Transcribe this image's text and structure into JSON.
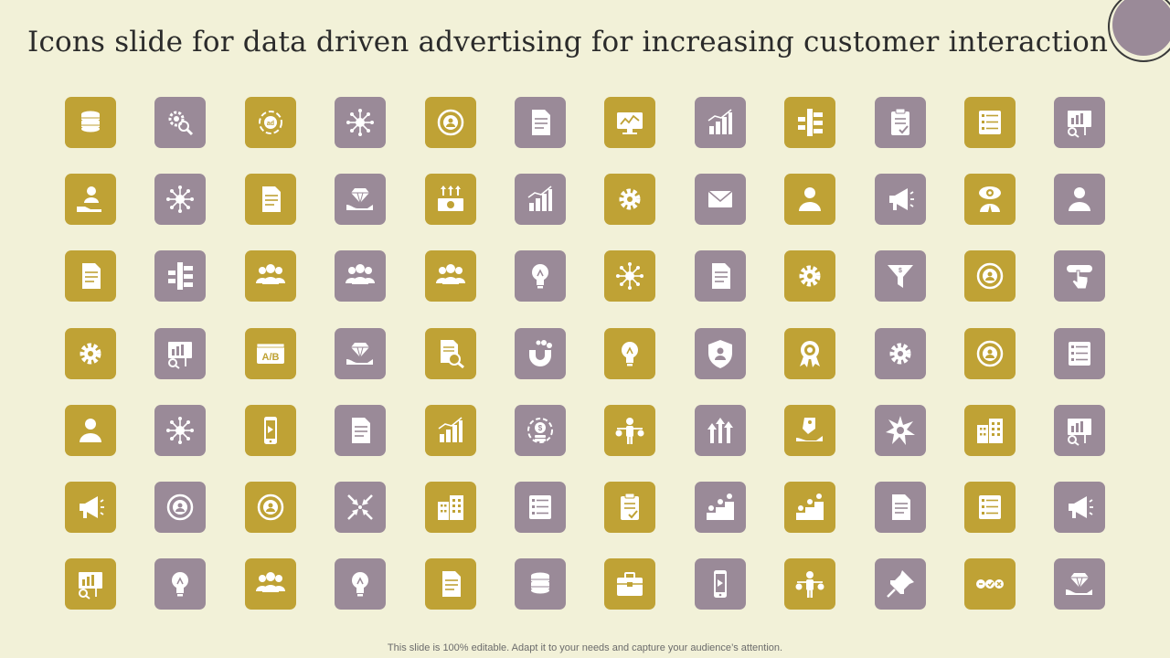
{
  "slide": {
    "title": "Icons slide for data driven advertising for increasing customer interaction",
    "footer": "This slide is 100% editable. Adapt it to your needs and capture your audience’s attention."
  },
  "colors": {
    "background": "#f2f1d8",
    "tile_gold": "#bfa235",
    "tile_mauve": "#9a8a98",
    "icon": "#ffffff",
    "accent_disc": "#9a8a98"
  },
  "icons": [
    [
      {
        "name": "database-stack-icon",
        "color": "gold",
        "glyph": "db"
      },
      {
        "name": "gear-search-icon",
        "color": "mauve",
        "glyph": "gearsearch"
      },
      {
        "name": "ad-cycle-icon",
        "color": "gold",
        "glyph": "cycle",
        "text": "ad"
      },
      {
        "name": "network-hub-icon",
        "color": "mauve",
        "glyph": "hub"
      },
      {
        "name": "target-user-icon",
        "color": "gold",
        "glyph": "target"
      },
      {
        "name": "report-document-icon",
        "color": "mauve",
        "glyph": "doc"
      },
      {
        "name": "monitor-analytics-icon",
        "color": "gold",
        "glyph": "monitor"
      },
      {
        "name": "pen-chart-icon",
        "color": "mauve",
        "glyph": "chart"
      },
      {
        "name": "flowchart-icon",
        "color": "gold",
        "glyph": "flow"
      },
      {
        "name": "clipboard-check-icon",
        "color": "mauve",
        "glyph": "clipboard"
      },
      {
        "name": "checklist-icon",
        "color": "gold",
        "glyph": "list"
      },
      {
        "name": "presentation-search-icon",
        "color": "mauve",
        "glyph": "board"
      }
    ],
    [
      {
        "name": "hand-user-icon",
        "color": "gold",
        "glyph": "handuser"
      },
      {
        "name": "document-network-icon",
        "color": "mauve",
        "glyph": "hub"
      },
      {
        "name": "documents-icon",
        "color": "gold",
        "glyph": "doc"
      },
      {
        "name": "hand-diamond-icon",
        "color": "mauve",
        "glyph": "diamond"
      },
      {
        "name": "money-growth-icon",
        "color": "gold",
        "glyph": "money"
      },
      {
        "name": "dollar-growth-chart-icon",
        "color": "mauve",
        "glyph": "chart"
      },
      {
        "name": "gear-tools-icon",
        "color": "gold",
        "glyph": "gear"
      },
      {
        "name": "envelope-icon",
        "color": "mauve",
        "glyph": "envelope"
      },
      {
        "name": "user-profile-icon",
        "color": "gold",
        "glyph": "user"
      },
      {
        "name": "megaphone-user-icon",
        "color": "mauve",
        "glyph": "megaphone"
      },
      {
        "name": "eye-businessman-icon",
        "color": "gold",
        "glyph": "eye"
      },
      {
        "name": "user-search-icon",
        "color": "mauve",
        "glyph": "user"
      }
    ],
    [
      {
        "name": "spreadsheet-report-icon",
        "color": "gold",
        "glyph": "doc"
      },
      {
        "name": "star-hierarchy-icon",
        "color": "mauve",
        "glyph": "flow"
      },
      {
        "name": "team-discussion-icon",
        "color": "gold",
        "glyph": "team"
      },
      {
        "name": "team-add-icon",
        "color": "mauve",
        "glyph": "team"
      },
      {
        "name": "group-meeting-icon",
        "color": "gold",
        "glyph": "team"
      },
      {
        "name": "idea-bulb-icon",
        "color": "mauve",
        "glyph": "bulb"
      },
      {
        "name": "connected-users-icon",
        "color": "gold",
        "glyph": "hub"
      },
      {
        "name": "notepad-edit-icon",
        "color": "mauve",
        "glyph": "doc"
      },
      {
        "name": "gear-settings-icon",
        "color": "gold",
        "glyph": "gear"
      },
      {
        "name": "dollar-funnel-icon",
        "color": "mauve",
        "glyph": "funnel"
      },
      {
        "name": "circular-network-icon",
        "color": "gold",
        "glyph": "target"
      },
      {
        "name": "click-hand-icon",
        "color": "mauve",
        "glyph": "click"
      }
    ],
    [
      {
        "name": "gears-cycle-icon",
        "color": "gold",
        "glyph": "gear"
      },
      {
        "name": "presentation-analysis-icon",
        "color": "mauve",
        "glyph": "board"
      },
      {
        "name": "ab-testing-icon",
        "color": "gold",
        "glyph": "ab",
        "text": "A/B"
      },
      {
        "name": "hands-diamond-icon",
        "color": "mauve",
        "glyph": "diamond"
      },
      {
        "name": "document-search-icon",
        "color": "gold",
        "glyph": "docsearch"
      },
      {
        "name": "magnet-icon",
        "color": "mauve",
        "glyph": "magnet"
      },
      {
        "name": "head-idea-icon",
        "color": "gold",
        "glyph": "bulb"
      },
      {
        "name": "shield-users-icon",
        "color": "mauve",
        "glyph": "shield"
      },
      {
        "name": "award-badge-icon",
        "color": "gold",
        "glyph": "award"
      },
      {
        "name": "hand-gears-icon",
        "color": "mauve",
        "glyph": "gear"
      },
      {
        "name": "customer-faces-icon",
        "color": "gold",
        "glyph": "target"
      },
      {
        "name": "settings-list-icon",
        "color": "mauve",
        "glyph": "list"
      }
    ],
    [
      {
        "name": "user-speech-icon",
        "color": "gold",
        "glyph": "user"
      },
      {
        "name": "briefcase-network-icon",
        "color": "mauve",
        "glyph": "hub"
      },
      {
        "name": "mobile-marketing-icon",
        "color": "gold",
        "glyph": "phone"
      },
      {
        "name": "text-document-icon",
        "color": "mauve",
        "glyph": "doc"
      },
      {
        "name": "growth-chart-search-icon",
        "color": "gold",
        "glyph": "chart"
      },
      {
        "name": "dollar-coins-cycle-icon",
        "color": "mauve",
        "glyph": "coin"
      },
      {
        "name": "balance-scale-person-icon",
        "color": "gold",
        "glyph": "scale"
      },
      {
        "name": "upward-arrows-icon",
        "color": "mauve",
        "glyph": "arrows"
      },
      {
        "name": "hand-tag-icon",
        "color": "gold",
        "glyph": "tag"
      },
      {
        "name": "broken-puzzle-icon",
        "color": "mauve",
        "glyph": "burst"
      },
      {
        "name": "office-buildings-icon",
        "color": "gold",
        "glyph": "building"
      },
      {
        "name": "presenter-board-icon",
        "color": "mauve",
        "glyph": "board"
      }
    ],
    [
      {
        "name": "megaphone-icon",
        "color": "gold",
        "glyph": "megaphone"
      },
      {
        "name": "target-arrows-icon",
        "color": "mauve",
        "glyph": "target"
      },
      {
        "name": "target-document-icon",
        "color": "gold",
        "glyph": "target"
      },
      {
        "name": "converging-arrows-icon",
        "color": "mauve",
        "glyph": "converge"
      },
      {
        "name": "city-car-icon",
        "color": "gold",
        "glyph": "building"
      },
      {
        "name": "survey-list-icon",
        "color": "mauve",
        "glyph": "list"
      },
      {
        "name": "checklist-clipboard-icon",
        "color": "gold",
        "glyph": "clipboard"
      },
      {
        "name": "dollar-steps-icon",
        "color": "mauve",
        "glyph": "steps"
      },
      {
        "name": "person-stairs-icon",
        "color": "gold",
        "glyph": "steps"
      },
      {
        "name": "document-gear-icon",
        "color": "mauve",
        "glyph": "doc"
      },
      {
        "name": "data-panel-icon",
        "color": "gold",
        "glyph": "list"
      },
      {
        "name": "megaphone-badge-icon",
        "color": "mauve",
        "glyph": "megaphone"
      }
    ],
    [
      {
        "name": "presentation-magnifier-icon",
        "color": "gold",
        "glyph": "board"
      },
      {
        "name": "bulb-magnifier-icon",
        "color": "mauve",
        "glyph": "bulb"
      },
      {
        "name": "team-group-icon",
        "color": "gold",
        "glyph": "team"
      },
      {
        "name": "bulb-gears-icon",
        "color": "mauve",
        "glyph": "bulb"
      },
      {
        "name": "documents-calculator-icon",
        "color": "gold",
        "glyph": "doc"
      },
      {
        "name": "database-gear-icon",
        "color": "mauve",
        "glyph": "db"
      },
      {
        "name": "toolbox-icon",
        "color": "gold",
        "glyph": "toolbox"
      },
      {
        "name": "mobile-envelope-icon",
        "color": "mauve",
        "glyph": "phone"
      },
      {
        "name": "person-decision-icon",
        "color": "gold",
        "glyph": "scale"
      },
      {
        "name": "push-pin-icon",
        "color": "mauve",
        "glyph": "pin"
      },
      {
        "name": "rating-buttons-icon",
        "color": "gold",
        "glyph": "dots"
      },
      {
        "name": "hands-gem-icon",
        "color": "mauve",
        "glyph": "diamond"
      }
    ]
  ]
}
